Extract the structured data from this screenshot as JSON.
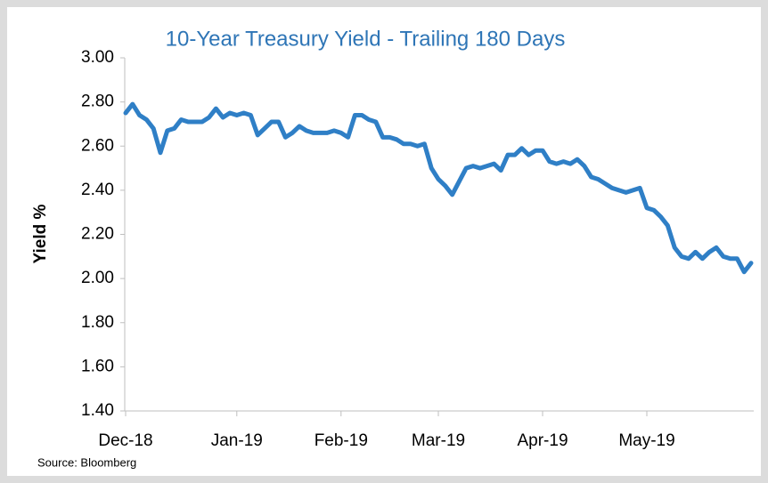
{
  "chart_data": {
    "type": "line",
    "title": "10-Year Treasury Yield - Trailing 180 Days",
    "y_label": "Yield %",
    "source": "Source: Bloomberg",
    "categories": [
      "Dec-18",
      null,
      null,
      null,
      null,
      null,
      null,
      null,
      null,
      null,
      null,
      null,
      null,
      null,
      null,
      null,
      "Jan-19",
      null,
      null,
      null,
      null,
      null,
      null,
      null,
      null,
      null,
      null,
      null,
      null,
      null,
      null,
      "Feb-19",
      null,
      null,
      null,
      null,
      null,
      null,
      null,
      null,
      null,
      null,
      null,
      null,
      null,
      "Mar-19",
      null,
      null,
      null,
      null,
      null,
      null,
      null,
      null,
      null,
      null,
      null,
      null,
      null,
      null,
      "Apr-19",
      null,
      null,
      null,
      null,
      null,
      null,
      null,
      null,
      null,
      null,
      null,
      null,
      null,
      null,
      "May-19",
      null,
      null,
      null,
      null,
      null,
      null,
      null,
      null,
      null,
      null,
      null,
      null,
      null,
      null,
      null
    ],
    "series": [
      {
        "name": "10-Year Treasury Yield",
        "color": "#2f7fc6",
        "values": [
          2.75,
          2.79,
          2.74,
          2.72,
          2.68,
          2.57,
          2.67,
          2.68,
          2.72,
          2.71,
          2.71,
          2.71,
          2.73,
          2.77,
          2.73,
          2.75,
          2.74,
          2.75,
          2.74,
          2.65,
          2.68,
          2.71,
          2.71,
          2.64,
          2.66,
          2.69,
          2.67,
          2.66,
          2.66,
          2.66,
          2.67,
          2.66,
          2.64,
          2.74,
          2.74,
          2.72,
          2.71,
          2.64,
          2.64,
          2.63,
          2.61,
          2.61,
          2.6,
          2.61,
          2.5,
          2.45,
          2.42,
          2.38,
          2.44,
          2.5,
          2.51,
          2.5,
          2.51,
          2.52,
          2.49,
          2.56,
          2.56,
          2.59,
          2.56,
          2.58,
          2.58,
          2.53,
          2.52,
          2.53,
          2.52,
          2.54,
          2.51,
          2.46,
          2.45,
          2.43,
          2.41,
          2.4,
          2.39,
          2.4,
          2.41,
          2.32,
          2.31,
          2.28,
          2.24,
          2.14,
          2.1,
          2.09,
          2.12,
          2.09,
          2.12,
          2.14,
          2.1,
          2.09,
          2.09,
          2.03,
          2.07
        ]
      }
    ],
    "ylim": [
      1.4,
      3.0
    ],
    "yticks": [
      {
        "value": 1.4,
        "label": "1.40"
      },
      {
        "value": 1.6,
        "label": "1.60"
      },
      {
        "value": 1.8,
        "label": "1.80"
      },
      {
        "value": 2.0,
        "label": "2.00"
      },
      {
        "value": 2.2,
        "label": "2.20"
      },
      {
        "value": 2.4,
        "label": "2.40"
      },
      {
        "value": 2.6,
        "label": "2.60"
      },
      {
        "value": 2.8,
        "label": "2.80"
      },
      {
        "value": 3.0,
        "label": "3.00"
      }
    ],
    "grid": false
  }
}
